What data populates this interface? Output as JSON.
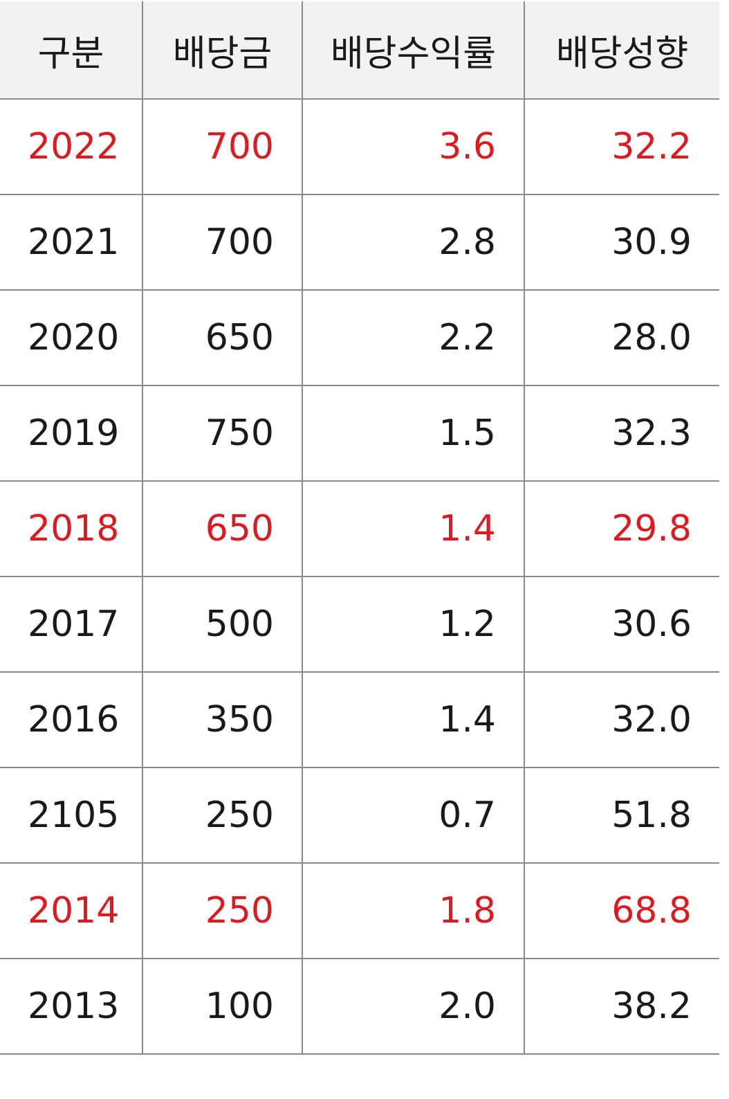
{
  "table": {
    "headers": [
      "구분",
      "배당금",
      "배당수익률",
      "배당성향"
    ],
    "highlight_color": "#e0191e",
    "rows": [
      {
        "year": "2022",
        "dividend": "700",
        "yield": "3.6",
        "payout": "32.2",
        "highlight": true
      },
      {
        "year": "2021",
        "dividend": "700",
        "yield": "2.8",
        "payout": "30.9",
        "highlight": false
      },
      {
        "year": "2020",
        "dividend": "650",
        "yield": "2.2",
        "payout": "28.0",
        "highlight": false
      },
      {
        "year": "2019",
        "dividend": "750",
        "yield": "1.5",
        "payout": "32.3",
        "highlight": false
      },
      {
        "year": "2018",
        "dividend": "650",
        "yield": "1.4",
        "payout": "29.8",
        "highlight": true
      },
      {
        "year": "2017",
        "dividend": "500",
        "yield": "1.2",
        "payout": "30.6",
        "highlight": false
      },
      {
        "year": "2016",
        "dividend": "350",
        "yield": "1.4",
        "payout": "32.0",
        "highlight": false
      },
      {
        "year": "2105",
        "dividend": "250",
        "yield": "0.7",
        "payout": "51.8",
        "highlight": false
      },
      {
        "year": "2014",
        "dividend": "250",
        "yield": "1.8",
        "payout": "68.8",
        "highlight": true
      },
      {
        "year": "2013",
        "dividend": "100",
        "yield": "2.0",
        "payout": "38.2",
        "highlight": false
      }
    ]
  }
}
